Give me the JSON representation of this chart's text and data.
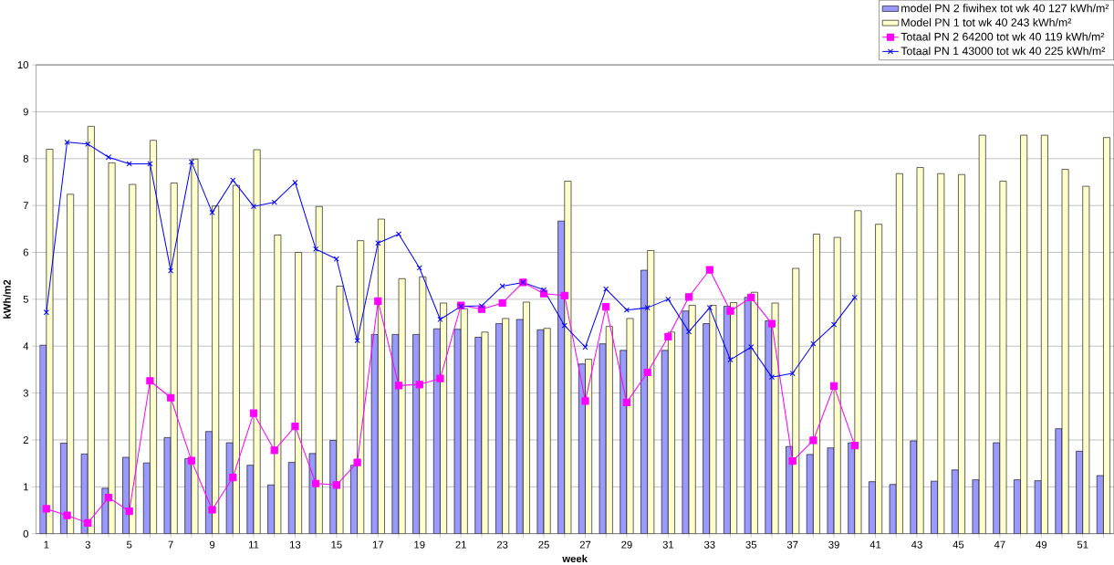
{
  "chart_data": {
    "type": "bar",
    "xlabel": "week",
    "ylabel": "kWh/m2",
    "categories": [
      "1",
      null,
      "3",
      null,
      "5",
      null,
      "7",
      null,
      "9",
      null,
      "11",
      null,
      "13",
      null,
      "15",
      null,
      "17",
      null,
      "19",
      null,
      "21",
      null,
      "23",
      null,
      "25",
      null,
      "27",
      null,
      "29",
      null,
      "31",
      null,
      "33",
      null,
      "35",
      null,
      "37",
      null,
      "39",
      null,
      "41",
      null,
      "43",
      null,
      "45",
      null,
      "47",
      null,
      "49",
      null,
      "51",
      null
    ],
    "series": [
      {
        "name": "model PN 2 fiwihex tot wk 40 127 kWh/m²",
        "color": "#9999ff",
        "values": [
          4.02,
          1.93,
          1.7,
          0.97,
          1.63,
          1.51,
          2.05,
          1.6,
          2.18,
          1.94,
          1.46,
          1.04,
          1.52,
          1.71,
          1.99,
          1.46,
          4.25,
          4.25,
          4.25,
          4.37,
          4.36,
          4.19,
          4.48,
          4.57,
          4.35,
          6.67,
          3.62,
          4.05,
          3.91,
          5.62,
          3.91,
          4.75,
          4.48,
          4.85,
          5.04,
          4.54,
          1.86,
          1.69,
          1.83,
          1.94,
          1.11,
          1.05,
          1.98,
          1.12,
          1.36,
          1.15,
          1.94,
          1.15,
          1.13,
          2.24,
          1.76,
          1.24
        ]
      },
      {
        "name": "Model PN 1 tot wk 40 243 kWh/m²",
        "color": "#ffffcc",
        "values": [
          8.2,
          7.24,
          8.69,
          7.91,
          7.45,
          8.39,
          7.48,
          7.99,
          6.99,
          7.43,
          8.19,
          6.37,
          6.0,
          6.98,
          5.28,
          6.25,
          6.71,
          5.44,
          5.48,
          4.92,
          4.8,
          4.3,
          4.59,
          4.94,
          4.38,
          7.52,
          3.72,
          4.42,
          4.59,
          6.04,
          4.3,
          4.87,
          4.87,
          4.93,
          5.15,
          4.92,
          5.66,
          6.39,
          6.32,
          6.89,
          6.6,
          7.68,
          7.81,
          7.68,
          7.66,
          8.5,
          7.52,
          8.5,
          8.5,
          7.77,
          7.41,
          8.45
        ]
      },
      {
        "name": "Totaal PN 2 64200 tot wk 40 119 kWh/m²",
        "type": "line",
        "color": "#ff00ff",
        "marker": "square",
        "values": [
          0.53,
          0.39,
          0.23,
          0.77,
          0.48,
          3.26,
          2.9,
          1.56,
          0.51,
          1.2,
          2.57,
          1.78,
          2.29,
          1.07,
          1.04,
          1.52,
          4.96,
          3.16,
          3.18,
          3.31,
          4.87,
          4.79,
          4.92,
          5.36,
          5.12,
          5.08,
          2.83,
          4.84,
          2.8,
          3.44,
          4.2,
          5.05,
          5.63,
          4.75,
          5.04,
          4.48,
          1.55,
          1.99,
          3.15,
          1.88,
          null,
          null,
          null,
          null,
          null,
          null,
          null,
          null,
          null,
          null,
          null,
          null
        ]
      },
      {
        "name": "Totaal PN 1  43000 tot wk 40 225 kWh/m²",
        "type": "line",
        "color": "#0000ff",
        "marker": "cross",
        "values": [
          4.72,
          8.35,
          8.31,
          8.03,
          7.89,
          7.89,
          5.61,
          7.93,
          6.85,
          7.54,
          6.98,
          7.07,
          7.49,
          6.07,
          5.86,
          4.12,
          6.2,
          6.39,
          5.67,
          4.57,
          4.85,
          4.86,
          5.28,
          5.36,
          5.2,
          4.44,
          3.98,
          5.22,
          4.77,
          4.82,
          5.0,
          4.31,
          4.82,
          3.71,
          3.98,
          3.34,
          3.42,
          4.05,
          4.46,
          5.04,
          null,
          null,
          null,
          null,
          null,
          null,
          null,
          null,
          null,
          null,
          null,
          null
        ]
      }
    ],
    "ylim": [
      0,
      10
    ],
    "yticks": [
      0,
      1,
      2,
      3,
      4,
      5,
      6,
      7,
      8,
      9,
      10
    ],
    "grid": "y",
    "legend": "top right"
  }
}
